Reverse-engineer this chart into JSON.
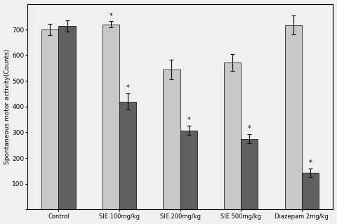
{
  "categories": [
    "Control",
    "SIE 100mg/kg",
    "SIE 200mg/kg",
    "SIE 500mg/kg",
    "Diazepam 2mg/kg"
  ],
  "light_bars": [
    700,
    720,
    545,
    572,
    718
  ],
  "dark_bars": [
    715,
    420,
    307,
    275,
    143
  ],
  "light_errors": [
    22,
    12,
    38,
    33,
    38
  ],
  "dark_errors": [
    22,
    32,
    18,
    18,
    16
  ],
  "light_color": "#c8c8c8",
  "dark_color": "#606060",
  "ylabel": "Spontaneous motor activity(Counts)",
  "ylim": [
    0,
    800
  ],
  "yticks": [
    0,
    100,
    200,
    300,
    400,
    500,
    600,
    700
  ],
  "yticklabels": [
    "",
    "100",
    "200",
    "300",
    "400",
    "500",
    "600",
    "700"
  ],
  "bg_color": "#f0f0f0",
  "asterisk_light": [
    false,
    true,
    false,
    false,
    false
  ],
  "asterisk_dark": [
    false,
    true,
    true,
    true,
    true
  ],
  "asterisk_light_vals": [
    null,
    720,
    null,
    null,
    null
  ],
  "asterisk_dark_vals": [
    null,
    420,
    307,
    275,
    143
  ]
}
